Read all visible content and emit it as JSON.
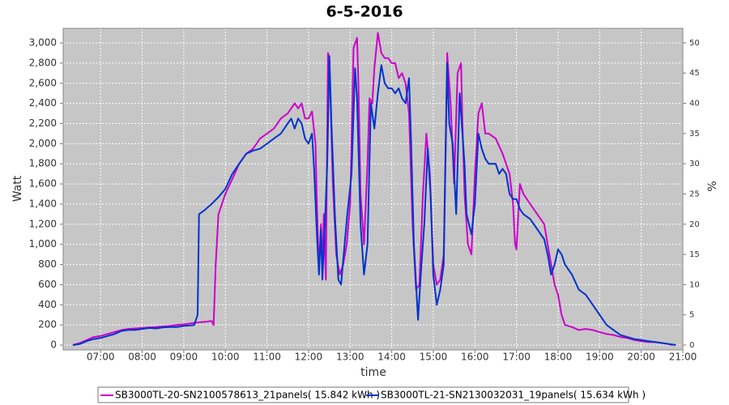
{
  "chart_data": {
    "type": "line",
    "title": "6-5-2016",
    "x_label": "time",
    "y_label": "Watt",
    "y2_label": "%",
    "xlim": [
      "06:06",
      "21:00"
    ],
    "xticks": [
      "07:00",
      "08:00",
      "09:00",
      "10:00",
      "11:00",
      "12:00",
      "13:00",
      "14:00",
      "15:00",
      "16:00",
      "17:00",
      "18:00",
      "19:00",
      "20:00",
      "21:00"
    ],
    "ylim": [
      -48,
      3145
    ],
    "yticks": [
      0,
      200,
      400,
      600,
      800,
      {
        "value": 1000,
        "label": "1,000"
      },
      {
        "value": 1200,
        "label": "1,200"
      },
      {
        "value": 1400,
        "label": "1,400"
      },
      {
        "value": 1600,
        "label": "1,600"
      },
      {
        "value": 1800,
        "label": "1,800"
      },
      {
        "value": 2000,
        "label": "2,000"
      },
      {
        "value": 2200,
        "label": "2,200"
      },
      {
        "value": 2400,
        "label": "2,400"
      },
      {
        "value": 2600,
        "label": "2,600"
      },
      {
        "value": 2800,
        "label": "2,800"
      },
      {
        "value": 3000,
        "label": "3,000"
      }
    ],
    "y2lim": [
      -0.8,
      52.4
    ],
    "y2ticks": [
      0,
      5,
      10,
      15,
      20,
      25,
      30,
      35,
      40,
      45,
      50
    ],
    "grid": true,
    "legend": "bottom",
    "series": [
      {
        "name": "SB3000TL-20-SN2100578613_21panels( 15.842 kWh  )",
        "color": "#cc00cc",
        "x": [
          "06:20",
          "06:30",
          "06:40",
          "06:50",
          "07:00",
          "07:10",
          "07:20",
          "07:30",
          "07:40",
          "07:50",
          "08:00",
          "08:10",
          "08:20",
          "08:30",
          "08:40",
          "08:50",
          "09:00",
          "09:10",
          "09:20",
          "09:30",
          "09:40",
          "09:43",
          "09:46",
          "09:50",
          "10:00",
          "10:10",
          "10:20",
          "10:30",
          "10:40",
          "10:50",
          "11:00",
          "11:10",
          "11:20",
          "11:30",
          "11:40",
          "11:45",
          "11:50",
          "11:55",
          "12:00",
          "12:05",
          "12:10",
          "12:12",
          "12:15",
          "12:18",
          "12:20",
          "12:22",
          "12:25",
          "12:28",
          "12:30",
          "12:35",
          "12:40",
          "12:45",
          "12:50",
          "12:55",
          "13:00",
          "13:05",
          "13:10",
          "13:12",
          "13:15",
          "13:20",
          "13:25",
          "13:28",
          "13:32",
          "13:35",
          "13:40",
          "13:45",
          "13:50",
          "13:55",
          "14:00",
          "14:05",
          "14:10",
          "14:15",
          "14:20",
          "14:25",
          "14:30",
          "14:35",
          "14:40",
          "14:45",
          "14:50",
          "14:55",
          "15:00",
          "15:05",
          "15:10",
          "15:15",
          "15:20",
          "15:25",
          "15:30",
          "15:35",
          "15:40",
          "15:42",
          "15:45",
          "15:50",
          "15:55",
          "16:00",
          "16:05",
          "16:10",
          "16:15",
          "16:20",
          "16:30",
          "16:40",
          "16:50",
          "16:55",
          "16:58",
          "17:00",
          "17:05",
          "17:10",
          "17:20",
          "17:30",
          "17:40",
          "17:45",
          "17:50",
          "17:55",
          "18:00",
          "18:05",
          "18:10",
          "18:20",
          "18:30",
          "18:40",
          "18:50",
          "19:00",
          "19:10",
          "19:20",
          "19:30",
          "19:40",
          "19:50",
          "20:00",
          "20:10",
          "20:20",
          "20:30",
          "20:40",
          "20:45"
        ],
        "values": [
          0,
          20,
          50,
          80,
          90,
          110,
          130,
          150,
          160,
          165,
          170,
          175,
          180,
          185,
          190,
          200,
          205,
          215,
          225,
          230,
          240,
          200,
          800,
          1300,
          1500,
          1650,
          1800,
          1900,
          1950,
          2050,
          2100,
          2150,
          2250,
          2300,
          2400,
          2350,
          2400,
          2250,
          2250,
          2320,
          2000,
          1400,
          750,
          1200,
          700,
          1300,
          650,
          2900,
          2850,
          1600,
          900,
          700,
          800,
          1000,
          1400,
          2950,
          3050,
          2600,
          1500,
          1000,
          1800,
          2450,
          2400,
          2750,
          3100,
          2900,
          2850,
          2850,
          2800,
          2800,
          2650,
          2700,
          2600,
          2300,
          1200,
          550,
          600,
          1500,
          2100,
          1700,
          800,
          600,
          650,
          900,
          2900,
          2400,
          1600,
          2700,
          2800,
          2200,
          1500,
          1000,
          900,
          1700,
          2300,
          2400,
          2100,
          2100,
          2050,
          1900,
          1700,
          1400,
          1000,
          950,
          1600,
          1500,
          1400,
          1300,
          1200,
          1000,
          800,
          600,
          500,
          300,
          200,
          180,
          150,
          160,
          150,
          130,
          110,
          100,
          80,
          70,
          50,
          40,
          30,
          30,
          20,
          10,
          0
        ]
      },
      {
        "name": "SB3000TL-21-SN2130032031_19panels( 15.634 kWh  )",
        "color": "#0033cc",
        "x": [
          "06:20",
          "06:30",
          "06:40",
          "06:50",
          "07:00",
          "07:10",
          "07:20",
          "07:30",
          "07:40",
          "07:50",
          "08:00",
          "08:10",
          "08:20",
          "08:30",
          "08:40",
          "08:50",
          "09:00",
          "09:10",
          "09:15",
          "09:20",
          "09:22",
          "09:30",
          "09:40",
          "09:50",
          "10:00",
          "10:10",
          "10:20",
          "10:30",
          "10:40",
          "10:50",
          "11:00",
          "11:10",
          "11:20",
          "11:30",
          "11:35",
          "11:40",
          "11:45",
          "11:50",
          "11:55",
          "12:00",
          "12:05",
          "12:08",
          "12:12",
          "12:15",
          "12:18",
          "12:20",
          "12:23",
          "12:27",
          "12:30",
          "12:33",
          "12:38",
          "12:43",
          "12:47",
          "12:52",
          "12:56",
          "13:02",
          "13:07",
          "13:10",
          "13:15",
          "13:20",
          "13:25",
          "13:30",
          "13:35",
          "13:40",
          "13:45",
          "13:50",
          "13:55",
          "14:00",
          "14:05",
          "14:10",
          "14:15",
          "14:20",
          "14:25",
          "14:28",
          "14:32",
          "14:38",
          "14:42",
          "14:47",
          "14:52",
          "14:56",
          "15:00",
          "15:05",
          "15:10",
          "15:15",
          "15:20",
          "15:23",
          "15:28",
          "15:33",
          "15:38",
          "15:45",
          "15:48",
          "15:55",
          "16:00",
          "16:05",
          "16:10",
          "16:15",
          "16:20",
          "16:30",
          "16:35",
          "16:40",
          "16:45",
          "16:50",
          "16:55",
          "17:00",
          "17:05",
          "17:10",
          "17:20",
          "17:30",
          "17:40",
          "17:45",
          "17:50",
          "17:55",
          "18:00",
          "18:05",
          "18:10",
          "18:20",
          "18:30",
          "18:40",
          "18:50",
          "19:00",
          "19:10",
          "19:20",
          "19:30",
          "19:40",
          "19:50",
          "20:00",
          "20:10",
          "20:20",
          "20:30",
          "20:40",
          "20:50"
        ],
        "values": [
          0,
          10,
          40,
          60,
          70,
          90,
          110,
          140,
          150,
          150,
          160,
          170,
          165,
          175,
          180,
          180,
          190,
          195,
          200,
          300,
          1300,
          1340,
          1400,
          1470,
          1550,
          1700,
          1800,
          1900,
          1930,
          1950,
          2000,
          2050,
          2100,
          2200,
          2250,
          2150,
          2250,
          2200,
          2050,
          2000,
          2100,
          1750,
          1100,
          700,
          1150,
          650,
          1100,
          1800,
          2870,
          2200,
          1300,
          650,
          600,
          1000,
          1300,
          1700,
          2750,
          2450,
          1200,
          700,
          1000,
          2400,
          2150,
          2500,
          2780,
          2600,
          2550,
          2550,
          2500,
          2550,
          2450,
          2400,
          2650,
          2000,
          1000,
          250,
          700,
          1200,
          1950,
          1500,
          700,
          400,
          550,
          800,
          2800,
          2200,
          2000,
          1300,
          2500,
          1800,
          1300,
          1100,
          1400,
          2100,
          1950,
          1850,
          1800,
          1800,
          1700,
          1750,
          1700,
          1500,
          1450,
          1450,
          1350,
          1300,
          1250,
          1150,
          1050,
          900,
          700,
          800,
          950,
          900,
          800,
          700,
          550,
          500,
          400,
          300,
          200,
          150,
          100,
          80,
          60,
          50,
          40,
          30,
          20,
          10,
          0
        ]
      }
    ]
  }
}
